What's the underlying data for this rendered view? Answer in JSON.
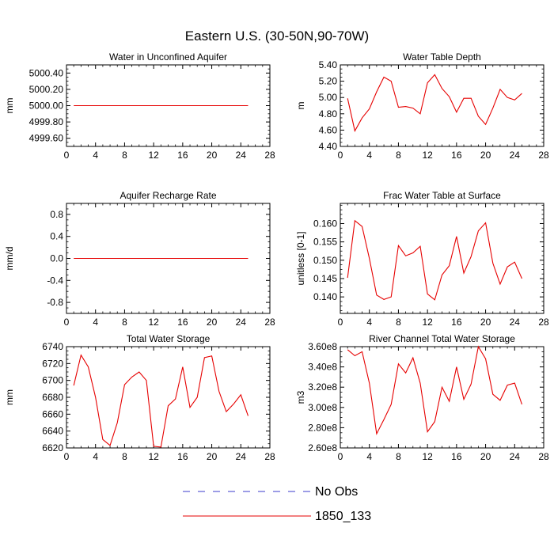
{
  "title": "Eastern U.S. (30-50N,90-70W)",
  "colors": {
    "obs": "#3b3bcc",
    "model": "#e60000",
    "axis": "#000000"
  },
  "legend": [
    {
      "label": "No Obs",
      "style": "dashed",
      "color": "#3b3bcc"
    },
    {
      "label": "1850_133",
      "style": "solid",
      "color": "#e60000"
    }
  ],
  "chart_data": [
    {
      "type": "line",
      "title": "Water in Unconfined Aquifer",
      "ylabel": "mm",
      "xlim": [
        0,
        28
      ],
      "xticks": [
        "0",
        "4",
        "8",
        "12",
        "16",
        "20",
        "24",
        "28"
      ],
      "ylim": [
        4999.5,
        5000.5
      ],
      "yticks": [
        4999.6,
        4999.8,
        5000.0,
        5000.2,
        5000.4
      ],
      "ytick_labels": [
        "4999.60",
        "4999.80",
        "5000.00",
        "5000.20",
        "5000.40"
      ],
      "series": [
        {
          "name": "1850_133",
          "x": [
            1,
            2,
            3,
            4,
            5,
            6,
            7,
            8,
            9,
            10,
            11,
            12,
            13,
            14,
            15,
            16,
            17,
            18,
            19,
            20,
            21,
            22,
            23,
            24,
            25
          ],
          "values": [
            5000,
            5000,
            5000,
            5000,
            5000,
            5000,
            5000,
            5000,
            5000,
            5000,
            5000,
            5000,
            5000,
            5000,
            5000,
            5000,
            5000,
            5000,
            5000,
            5000,
            5000,
            5000,
            5000,
            5000,
            5000
          ]
        }
      ]
    },
    {
      "type": "line",
      "title": "Water Table Depth",
      "ylabel": "m",
      "xlim": [
        0,
        28
      ],
      "xticks": [
        "0",
        "4",
        "8",
        "12",
        "16",
        "20",
        "24",
        "28"
      ],
      "ylim": [
        4.4,
        5.4
      ],
      "yticks": [
        4.4,
        4.6,
        4.8,
        5.0,
        5.2,
        5.4
      ],
      "ytick_labels": [
        "4.40",
        "4.60",
        "4.80",
        "5.00",
        "5.20",
        "5.40"
      ],
      "series": [
        {
          "name": "1850_133",
          "x": [
            1,
            2,
            3,
            4,
            5,
            6,
            7,
            8,
            9,
            10,
            11,
            12,
            13,
            14,
            15,
            16,
            17,
            18,
            19,
            20,
            21,
            22,
            23,
            24,
            25
          ],
          "values": [
            4.99,
            4.59,
            4.75,
            4.86,
            5.07,
            5.25,
            5.2,
            4.88,
            4.89,
            4.87,
            4.8,
            5.18,
            5.28,
            5.11,
            5.01,
            4.82,
            4.99,
            4.99,
            4.77,
            4.67,
            4.87,
            5.1,
            5.0,
            4.97,
            5.05
          ]
        }
      ]
    },
    {
      "type": "line",
      "title": "Aquifer Recharge Rate",
      "ylabel": "mm/d",
      "xlim": [
        0,
        28
      ],
      "xticks": [
        "0",
        "4",
        "8",
        "12",
        "16",
        "20",
        "24",
        "28"
      ],
      "ylim": [
        -1.0,
        1.0
      ],
      "yticks": [
        -0.8,
        -0.4,
        0.0,
        0.4,
        0.8
      ],
      "ytick_labels": [
        "-0.8",
        "-0.4",
        "0.0",
        "0.4",
        "0.8"
      ],
      "series": [
        {
          "name": "1850_133",
          "x": [
            1,
            2,
            3,
            4,
            5,
            6,
            7,
            8,
            9,
            10,
            11,
            12,
            13,
            14,
            15,
            16,
            17,
            18,
            19,
            20,
            21,
            22,
            23,
            24,
            25
          ],
          "values": [
            0,
            0,
            0,
            0,
            0,
            0,
            0,
            0,
            0,
            0,
            0,
            0,
            0,
            0,
            0,
            0,
            0,
            0,
            0,
            0,
            0,
            0,
            0,
            0,
            0
          ]
        }
      ]
    },
    {
      "type": "line",
      "title": "Frac Water Table at Surface",
      "ylabel": "unitless [0-1]",
      "xlim": [
        0,
        28
      ],
      "xticks": [
        "0",
        "4",
        "8",
        "12",
        "16",
        "20",
        "24",
        "28"
      ],
      "ylim": [
        0.1355,
        0.1655
      ],
      "yticks": [
        0.14,
        0.145,
        0.15,
        0.155,
        0.16
      ],
      "ytick_labels": [
        "0.140",
        "0.145",
        "0.150",
        "0.155",
        "0.160"
      ],
      "series": [
        {
          "name": "1850_133",
          "x": [
            1,
            2,
            3,
            4,
            5,
            6,
            7,
            8,
            9,
            10,
            11,
            12,
            13,
            14,
            15,
            16,
            17,
            18,
            19,
            20,
            21,
            22,
            23,
            24,
            25
          ],
          "values": [
            0.1452,
            0.1608,
            0.1592,
            0.1505,
            0.1405,
            0.1393,
            0.14,
            0.154,
            0.1512,
            0.152,
            0.1538,
            0.1408,
            0.1392,
            0.146,
            0.1485,
            0.1565,
            0.1465,
            0.151,
            0.158,
            0.1602,
            0.1492,
            0.1435,
            0.1482,
            0.1495,
            0.145
          ]
        }
      ]
    },
    {
      "type": "line",
      "title": "Total Water Storage",
      "ylabel": "mm",
      "xlim": [
        0,
        28
      ],
      "xticks": [
        "0",
        "4",
        "8",
        "12",
        "16",
        "20",
        "24",
        "28"
      ],
      "ylim": [
        6620,
        6740
      ],
      "yticks": [
        6620,
        6640,
        6660,
        6680,
        6700,
        6720,
        6740
      ],
      "ytick_labels": [
        "6620",
        "6640",
        "6660",
        "6680",
        "6700",
        "6720",
        "6740"
      ],
      "series": [
        {
          "name": "1850_133",
          "x": [
            1,
            2,
            3,
            4,
            5,
            6,
            7,
            8,
            9,
            10,
            11,
            12,
            13,
            14,
            15,
            16,
            17,
            18,
            19,
            20,
            21,
            22,
            23,
            24,
            25
          ],
          "values": [
            6694,
            6730,
            6716,
            6680,
            6630,
            6623,
            6650,
            6695,
            6704,
            6710,
            6700,
            6622,
            6621,
            6670,
            6678,
            6716,
            6668,
            6680,
            6727,
            6729,
            6687,
            6663,
            6672,
            6683,
            6658
          ]
        }
      ]
    },
    {
      "type": "line",
      "title": "River Channel Total Water Storage",
      "ylabel": "m3",
      "xlim": [
        0,
        28
      ],
      "xticks": [
        "0",
        "4",
        "8",
        "12",
        "16",
        "20",
        "24",
        "28"
      ],
      "ylim": [
        260000000,
        360000000
      ],
      "yticks": [
        260000000,
        280000000,
        300000000,
        320000000,
        340000000,
        360000000
      ],
      "ytick_labels": [
        "2.60e8",
        "2.80e8",
        "3.00e8",
        "3.20e8",
        "3.40e8",
        "3.60e8"
      ],
      "series": [
        {
          "name": "1850_133",
          "x": [
            1,
            2,
            3,
            4,
            5,
            6,
            7,
            8,
            9,
            10,
            11,
            12,
            13,
            14,
            15,
            16,
            17,
            18,
            19,
            20,
            21,
            22,
            23,
            24,
            25
          ],
          "values": [
            357000000,
            351000000,
            355000000,
            324000000,
            274000000,
            288000000,
            303000000,
            343000000,
            334000000,
            349000000,
            324000000,
            276000000,
            286000000,
            320000000,
            306000000,
            340000000,
            308000000,
            323000000,
            360000000,
            348000000,
            313000000,
            307000000,
            322000000,
            324000000,
            303000000
          ]
        }
      ]
    }
  ]
}
